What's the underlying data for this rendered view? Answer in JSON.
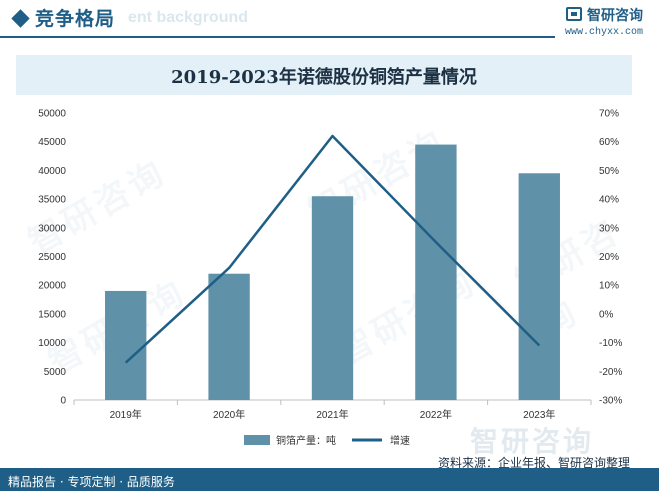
{
  "header": {
    "title": "竞争格局",
    "ghost_text": "ent background",
    "logo_name": "智研咨询",
    "logo_url": "www.chyxx.com"
  },
  "chart_data": {
    "type": "bar+line",
    "title": "2019-2023年诺德股份铜箔产量情况",
    "categories": [
      "2019年",
      "2020年",
      "2021年",
      "2022年",
      "2023年"
    ],
    "series": [
      {
        "name": "铜箔产量：吨",
        "type": "bar",
        "axis": "left",
        "color": "#5f92a8",
        "values": [
          19000,
          22000,
          35500,
          44500,
          39500
        ]
      },
      {
        "name": "增速",
        "type": "line",
        "axis": "right",
        "color": "#1f5f87",
        "values": [
          -17,
          16,
          62,
          25,
          -11
        ]
      }
    ],
    "y_left": {
      "min": 0,
      "max": 50000,
      "step": 5000,
      "tick_labels": [
        "0",
        "5000",
        "10000",
        "15000",
        "20000",
        "25000",
        "30000",
        "35000",
        "40000",
        "45000",
        "50000"
      ]
    },
    "y_right": {
      "min": -30,
      "max": 70,
      "step": 10,
      "tick_labels": [
        "-30%",
        "-20%",
        "-10%",
        "0%",
        "10%",
        "20%",
        "30%",
        "40%",
        "50%",
        "60%",
        "70%"
      ]
    },
    "grid": false,
    "legend": "bottom"
  },
  "watermark_text": "智研咨询",
  "source": "资料来源：企业年报、智研咨询整理",
  "footer": {
    "left_text": "精品报告 · 专项定制 · 品质服务"
  }
}
